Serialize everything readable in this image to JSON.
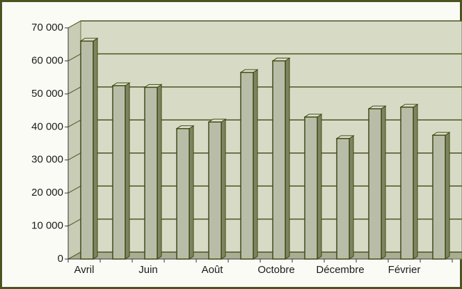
{
  "chart_data": {
    "type": "bar3d",
    "categories": [
      "Avril",
      null,
      "Juin",
      null,
      "Août",
      null,
      "Octobre",
      null,
      "Décembre",
      null,
      "Février",
      null
    ],
    "values": [
      66000,
      52500,
      52000,
      39500,
      41500,
      56500,
      60000,
      43000,
      36500,
      45500,
      46000,
      37500
    ],
    "color": "#b9bda8",
    "ylim": [
      0,
      70000
    ],
    "yticks": [
      {
        "value": 0,
        "label": "0"
      },
      {
        "value": 10000,
        "label": "10 000"
      },
      {
        "value": 20000,
        "label": "20 000"
      },
      {
        "value": 30000,
        "label": "30 000"
      },
      {
        "value": 40000,
        "label": "40 000"
      },
      {
        "value": 50000,
        "label": "50 000"
      },
      {
        "value": 60000,
        "label": "60 000"
      },
      {
        "value": 70000,
        "label": "70 000"
      }
    ],
    "grid": true
  }
}
